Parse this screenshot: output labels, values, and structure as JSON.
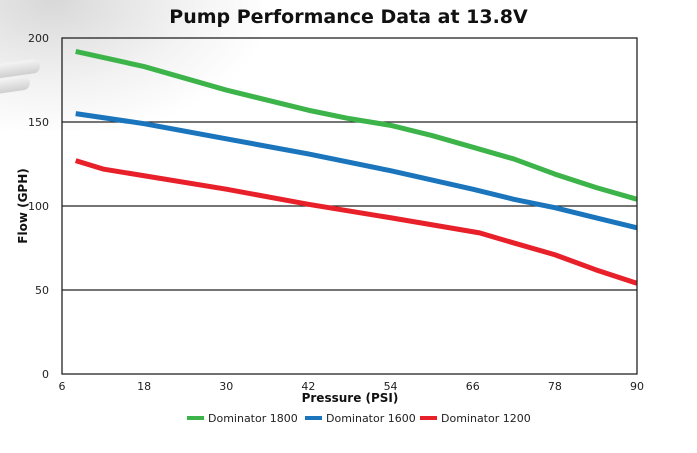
{
  "chart_data": {
    "type": "line",
    "title": "Pump Performance Data at 13.8V",
    "xlabel": "Pressure (PSI)",
    "ylabel": "Flow (GPH)",
    "xlim": [
      6,
      90
    ],
    "ylim": [
      0,
      200
    ],
    "xticks": [
      6,
      18,
      30,
      42,
      54,
      66,
      78,
      90
    ],
    "yticks": [
      0,
      50,
      100,
      150,
      200
    ],
    "grid": "horizontal",
    "legend": "bottom",
    "series": [
      {
        "name": "Dominator 1800",
        "color": "#3cb44a",
        "x": [
          8,
          18,
          30,
          42,
          48,
          54,
          60,
          66,
          72,
          78,
          84,
          90
        ],
        "y": [
          192,
          183,
          169,
          157,
          152,
          148,
          142,
          135,
          128,
          119,
          111,
          104
        ]
      },
      {
        "name": "Dominator 1600",
        "color": "#1a75bc",
        "x": [
          8,
          18,
          30,
          42,
          54,
          66,
          72,
          78,
          84,
          90
        ],
        "y": [
          155,
          149,
          140,
          131,
          121,
          110,
          104,
          99,
          93,
          87
        ]
      },
      {
        "name": "Dominator 1200",
        "color": "#e8202a",
        "x": [
          8,
          12,
          18,
          30,
          42,
          54,
          67,
          72,
          78,
          84,
          90
        ],
        "y": [
          127,
          122,
          118,
          110,
          101,
          93,
          84,
          78,
          71,
          62,
          54
        ]
      }
    ]
  }
}
